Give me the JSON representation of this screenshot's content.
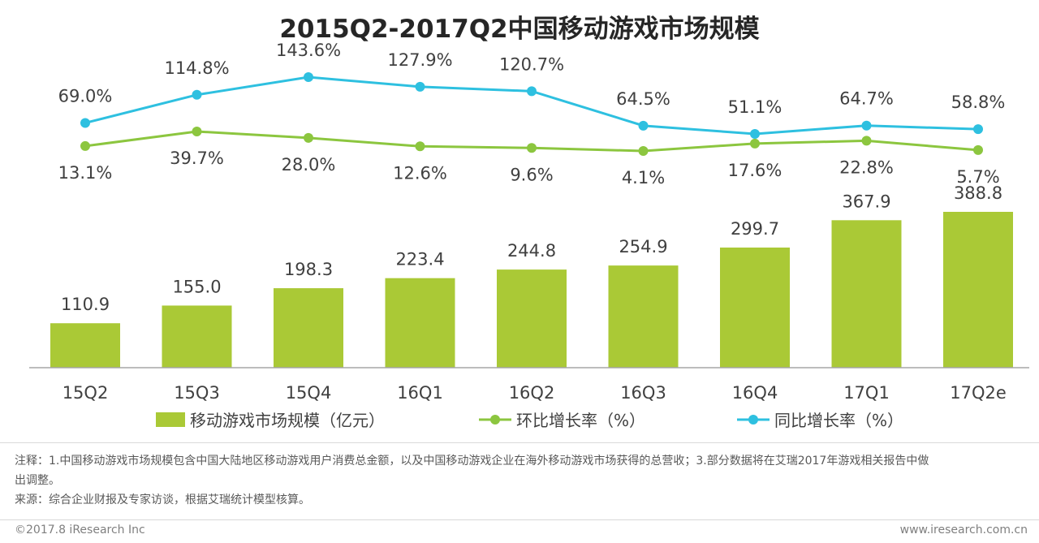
{
  "chart_data": {
    "type": "bar",
    "title": "2015Q2-2017Q2中国移动游戏市场规模",
    "categories": [
      "15Q2",
      "15Q3",
      "15Q4",
      "16Q1",
      "16Q2",
      "16Q3",
      "16Q4",
      "17Q1",
      "17Q2e"
    ],
    "series": [
      {
        "name": "移动游戏市场规模（亿元）",
        "kind": "bar",
        "color": "#aac936",
        "values": [
          110.9,
          155.0,
          198.3,
          223.4,
          244.8,
          254.9,
          299.7,
          367.9,
          388.8
        ],
        "labels": [
          "110.9",
          "155.0",
          "198.3",
          "223.4",
          "244.8",
          "254.9",
          "299.7",
          "367.9",
          "388.8"
        ]
      },
      {
        "name": "环比增长率（%）",
        "kind": "line",
        "color": "#8cc63f",
        "values": [
          13.1,
          39.7,
          28.0,
          12.6,
          9.6,
          4.1,
          17.6,
          22.8,
          5.7
        ],
        "labels": [
          "13.1%",
          "39.7%",
          "28.0%",
          "12.6%",
          "9.6%",
          "4.1%",
          "17.6%",
          "22.8%",
          "5.7%"
        ]
      },
      {
        "name": "同比增长率（%）",
        "kind": "line",
        "color": "#2ec0e0",
        "values": [
          69.0,
          114.8,
          143.6,
          127.9,
          120.7,
          64.5,
          51.1,
          64.7,
          58.8
        ],
        "labels": [
          "69.0%",
          "114.8%",
          "143.6%",
          "127.9%",
          "120.7%",
          "64.5%",
          "51.1%",
          "64.7%",
          "58.8%"
        ]
      }
    ],
    "ylim_bar": [
      0,
      450
    ],
    "legend": "bottom"
  },
  "notes": {
    "line1": "注释：1.中国移动游戏市场规模包含中国大陆地区移动游戏用户消费总金额，以及中国移动游戏企业在海外移动游戏市场获得的总营收；3.部分数据将在艾瑞2017年游戏相关报告中做",
    "line2": "出调整。",
    "source": "来源：综合企业财报及专家访谈，根据艾瑞统计模型核算。"
  },
  "footer": {
    "copyright": "©2017.8 iResearch Inc",
    "url": "www.iresearch.com.cn"
  }
}
